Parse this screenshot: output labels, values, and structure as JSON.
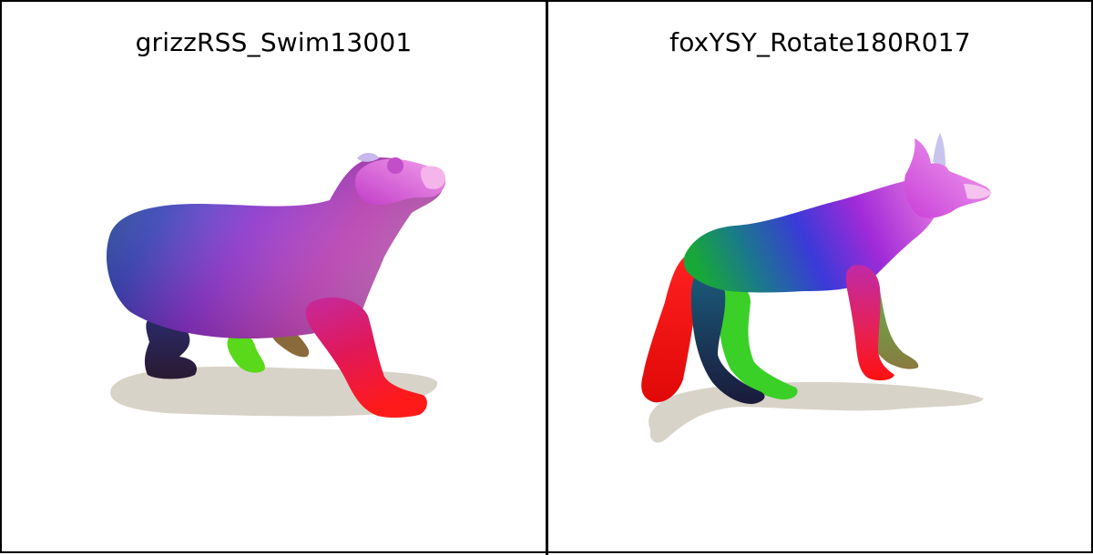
{
  "panels": [
    {
      "title": "grizzRSS_Swim13001",
      "subject": "bear-render"
    },
    {
      "title": "foxYSY_Rotate180R017",
      "subject": "fox-render"
    }
  ],
  "colors": {
    "background": "#ffffff",
    "border": "#000000",
    "shadow": "#d8d3c8"
  }
}
